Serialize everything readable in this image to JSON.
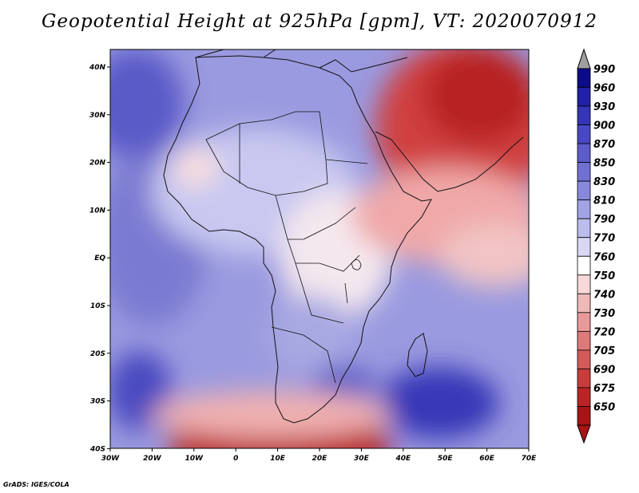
{
  "title": "Geopotential Height at 925hPa [gpm], VT: 2020070912",
  "credit": "GrADS: IGES/COLA",
  "map": {
    "lon_labels": [
      "30W",
      "20W",
      "10W",
      "0",
      "10E",
      "20E",
      "30E",
      "40E",
      "50E",
      "60E",
      "70E"
    ],
    "lat_labels": [
      "40N",
      "30N",
      "20N",
      "10N",
      "EQ",
      "10S",
      "20S",
      "30S",
      "40S"
    ],
    "colorbar": {
      "labels": [
        "990",
        "960",
        "930",
        "900",
        "870",
        "850",
        "830",
        "810",
        "790",
        "770",
        "760",
        "750",
        "740",
        "730",
        "720",
        "705",
        "690",
        "675",
        "650"
      ],
      "colors": [
        "#0c0c8a",
        "#2020a8",
        "#3535b8",
        "#4848c4",
        "#5c5ccc",
        "#7070d4",
        "#8888dc",
        "#a2a2e6",
        "#bcbcee",
        "#d8d8f6",
        "#ffffff",
        "#f8d8d8",
        "#f0b8b8",
        "#e89a9a",
        "#de7a7a",
        "#d45a5a",
        "#c83c3c",
        "#bb2424",
        "#a81414"
      ],
      "top_arrow_color": "#a0a0a0",
      "bottom_arrow_color": "#a81414"
    }
  }
}
